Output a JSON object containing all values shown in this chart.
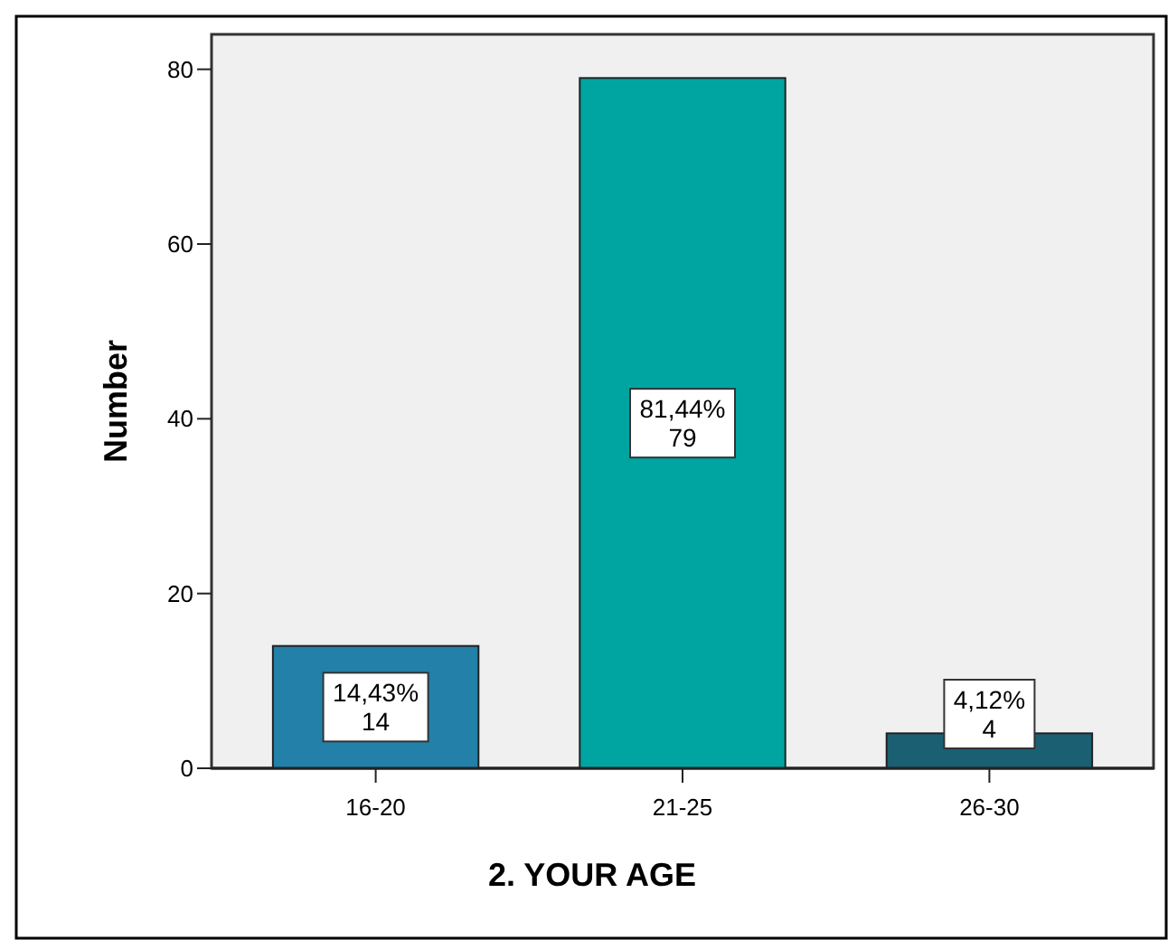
{
  "chart_data": {
    "type": "bar",
    "xlabel": "2. YOUR AGE",
    "ylabel": "Number",
    "categories": [
      "16-20",
      "21-25",
      "26-30"
    ],
    "values": [
      14,
      79,
      4
    ],
    "colors": [
      "#2380a8",
      "#00a5a1",
      "#1b5f72"
    ],
    "value_labels": [
      "14,43%\n14",
      "81,44%\n79",
      "4,12%\n4"
    ],
    "ylim": [
      0,
      84
    ],
    "yticks": [
      0,
      20,
      40,
      60,
      80
    ],
    "grid": false
  }
}
